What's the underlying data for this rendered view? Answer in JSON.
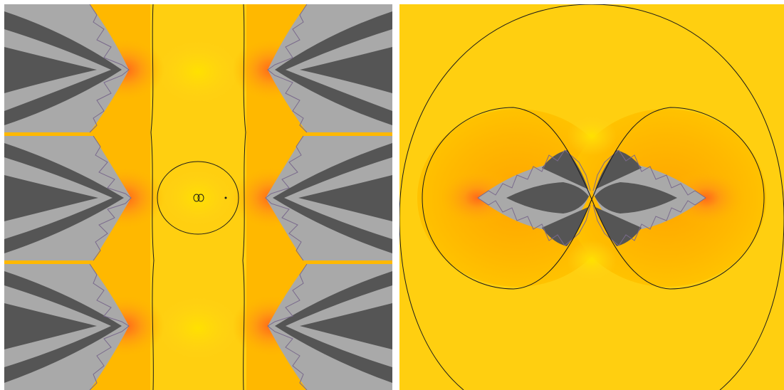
{
  "figure": {
    "panels": [
      {
        "id": "left",
        "subject": "fractal-periodic-strip"
      },
      {
        "id": "right",
        "subject": "fractal-bilobed-with-contours"
      }
    ],
    "colors": {
      "background": "#ffffff",
      "field_orange": "#ffb800",
      "field_yellow": "#ffd21a",
      "field_pale": "#ffe100",
      "hot_orange": "#ff7a1a",
      "fractal_dark": "#555555",
      "fractal_light": "#a9a9a9",
      "fractal_edge": "#7a6a8c",
      "contour": "#1a1a1a"
    }
  }
}
